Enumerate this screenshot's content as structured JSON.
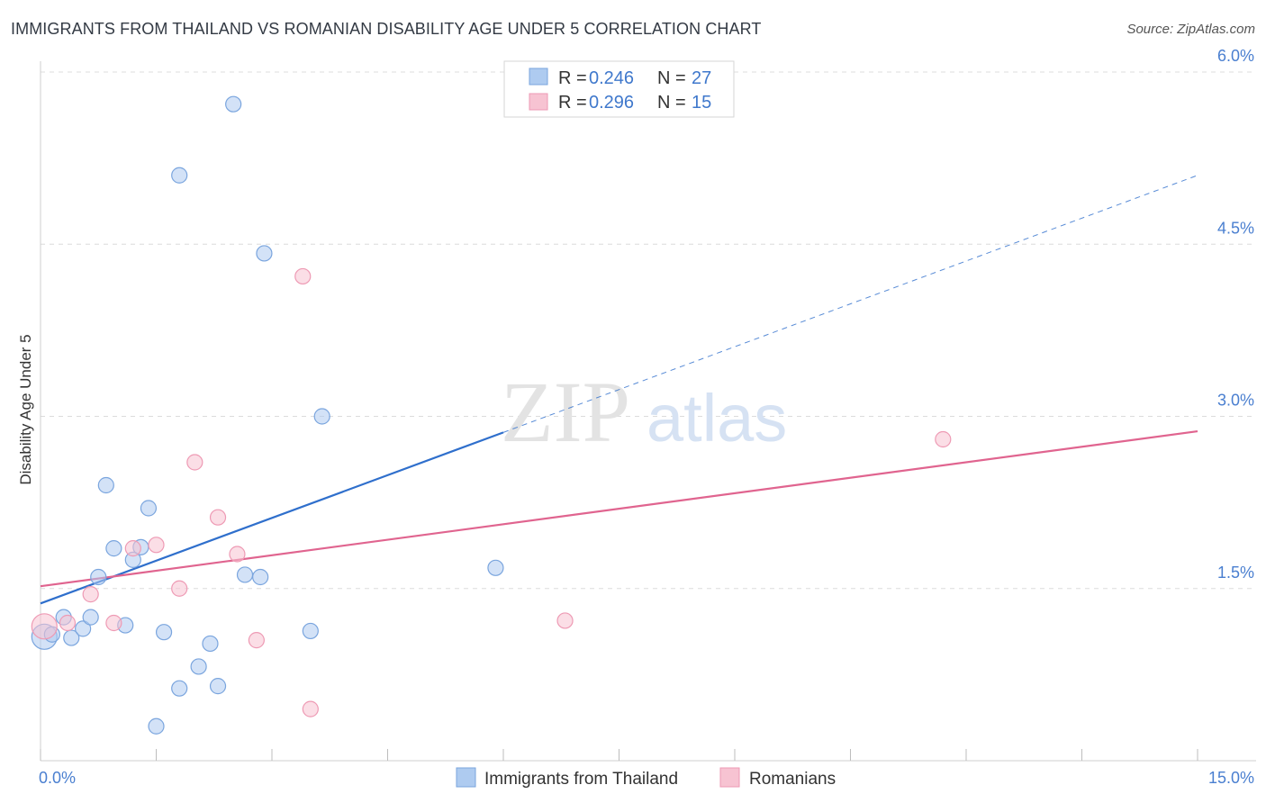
{
  "header": {
    "title": "IMMIGRANTS FROM THAILAND VS ROMANIAN DISABILITY AGE UNDER 5 CORRELATION CHART",
    "source": "Source: ZipAtlas.com"
  },
  "watermark": {
    "zip": "ZIP",
    "atlas": "atlas"
  },
  "colors": {
    "blue_fill": "#aecbf0",
    "blue_stroke": "#7aa5de",
    "blue_line": "#2f6fcc",
    "pink_fill": "#f7c3d2",
    "pink_stroke": "#ee9ab4",
    "pink_line": "#e0648f",
    "grid": "#dcdcdc",
    "tick_text": "#4a7fd0"
  },
  "legend": {
    "rows": [
      {
        "r_label": "R =",
        "r_value": "0.246",
        "n_label": "N =",
        "n_value": "27"
      },
      {
        "r_label": "R =",
        "r_value": "0.296",
        "n_label": "N =",
        "n_value": "15"
      }
    ]
  },
  "bottom_legend": [
    {
      "label": "Immigrants from Thailand"
    },
    {
      "label": "Romanians"
    }
  ],
  "chart_data": {
    "type": "scatter",
    "title": "IMMIGRANTS FROM THAILAND VS ROMANIAN DISABILITY AGE UNDER 5 CORRELATION CHART",
    "xlabel": "",
    "ylabel": "Disability Age Under 5",
    "xlim": [
      0,
      15
    ],
    "ylim": [
      0,
      6.2
    ],
    "x_tick_labels": [
      {
        "value": 0,
        "label": "0.0%"
      },
      {
        "value": 15,
        "label": "15.0%"
      }
    ],
    "y_ticks": [
      {
        "value": 1.5,
        "label": "1.5%"
      },
      {
        "value": 3.0,
        "label": "3.0%"
      },
      {
        "value": 4.5,
        "label": "4.5%"
      },
      {
        "value": 6.0,
        "label": "6.0%"
      }
    ],
    "grid": true,
    "legend_position": "top-center",
    "series": [
      {
        "name": "Immigrants from Thailand",
        "color": "#aecbf0",
        "points": [
          [
            0.05,
            1.08
          ],
          [
            0.15,
            1.1
          ],
          [
            0.3,
            1.25
          ],
          [
            0.4,
            1.07
          ],
          [
            0.55,
            1.15
          ],
          [
            0.65,
            1.25
          ],
          [
            0.75,
            1.6
          ],
          [
            0.85,
            2.4
          ],
          [
            0.95,
            1.85
          ],
          [
            1.1,
            1.18
          ],
          [
            1.2,
            1.75
          ],
          [
            1.3,
            1.86
          ],
          [
            1.4,
            2.2
          ],
          [
            1.5,
            0.3
          ],
          [
            1.6,
            1.12
          ],
          [
            1.8,
            0.63
          ],
          [
            1.8,
            5.1
          ],
          [
            2.05,
            0.82
          ],
          [
            2.2,
            1.02
          ],
          [
            2.3,
            0.65
          ],
          [
            2.5,
            5.72
          ],
          [
            2.65,
            1.62
          ],
          [
            2.85,
            1.6
          ],
          [
            2.9,
            4.42
          ],
          [
            3.5,
            1.13
          ],
          [
            3.65,
            3.0
          ],
          [
            5.9,
            1.68
          ]
        ],
        "trend": {
          "x0": 0,
          "y0": 1.37,
          "x1": 6.0,
          "y1": 2.86,
          "dashed_to_x": 15.0,
          "dashed_to_y": 5.1
        }
      },
      {
        "name": "Romanians",
        "color": "#f7c3d2",
        "points": [
          [
            0.05,
            1.17
          ],
          [
            0.35,
            1.2
          ],
          [
            0.65,
            1.45
          ],
          [
            0.95,
            1.2
          ],
          [
            1.2,
            1.85
          ],
          [
            1.5,
            1.88
          ],
          [
            1.8,
            1.5
          ],
          [
            2.0,
            2.6
          ],
          [
            2.3,
            2.12
          ],
          [
            2.55,
            1.8
          ],
          [
            2.8,
            1.05
          ],
          [
            3.4,
            4.22
          ],
          [
            3.5,
            0.45
          ],
          [
            6.8,
            1.22
          ],
          [
            11.7,
            2.8
          ]
        ],
        "trend": {
          "x0": 0,
          "y0": 1.52,
          "x1": 15.0,
          "y1": 2.87
        }
      }
    ]
  }
}
